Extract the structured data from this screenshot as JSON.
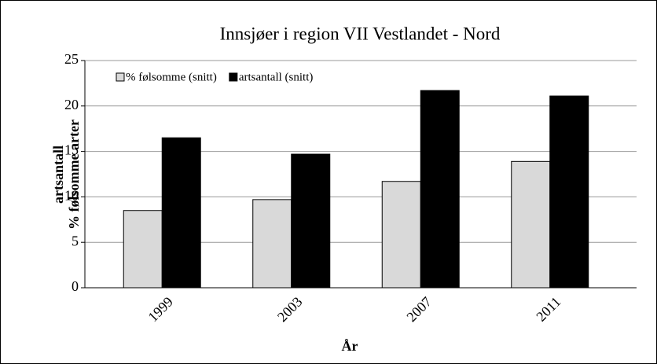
{
  "chart_data": {
    "type": "bar",
    "title": "Innsjøer i region VII Vestlandet - Nord",
    "y_label": [
      "artsantall",
      "% følsomme arter"
    ],
    "x_label": "År",
    "categories": [
      "1999",
      "2003",
      "2007",
      "2011"
    ],
    "series": [
      {
        "name": "% følsomme (snitt)",
        "color": "#d9d9d9",
        "values": [
          8.5,
          9.7,
          11.7,
          13.9
        ]
      },
      {
        "name": "artsantall (snitt)",
        "color": "#000000",
        "values": [
          16.5,
          14.7,
          21.7,
          21.1
        ]
      }
    ],
    "ylim": [
      0,
      25
    ],
    "yticks": [
      0,
      5,
      10,
      15,
      20,
      25
    ],
    "grid": true,
    "legend": "top-left"
  }
}
